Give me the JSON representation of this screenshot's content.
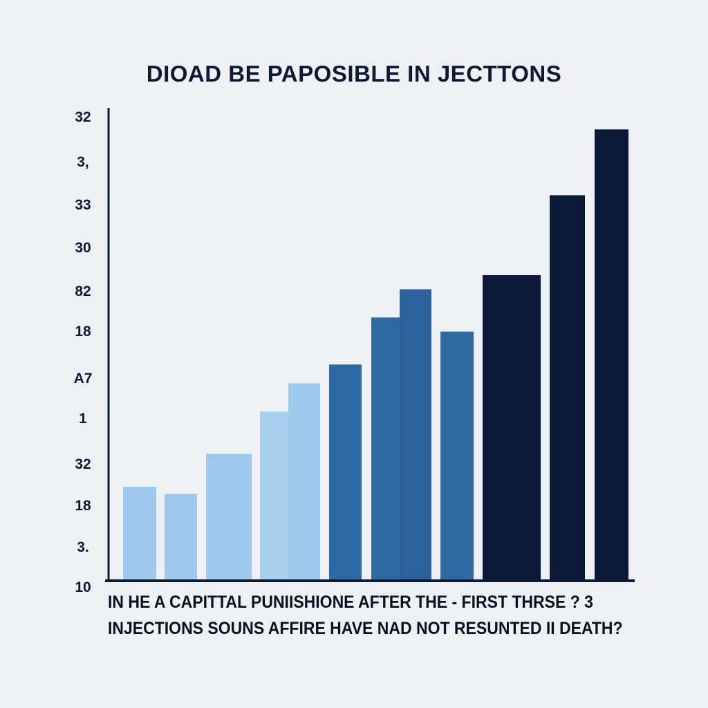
{
  "chart_data": {
    "type": "bar",
    "title": "DIOAD BE PAPOSIBLE IN JECTTONS",
    "xlabel_lines": [
      "IN HE A CAPITTAL PUNIISHIONE AFTER  THE - FIRST THRSE ? 3",
      "INJECTIONS SOUNS AFFIRE HAVE NAD NOT RESUNTED II DEATH?"
    ],
    "ylabel": "",
    "y_tick_labels": [
      "32",
      "3,",
      "33",
      "30",
      "82",
      "18",
      "A7",
      "1",
      "32",
      "18",
      "3.",
      "10"
    ],
    "ylim": [
      0,
      100
    ],
    "values": [
      20,
      18.5,
      27,
      36,
      42,
      46,
      56,
      62,
      53,
      65,
      82,
      96
    ],
    "colors": [
      "#9ec9ec",
      "#9ec9ec",
      "#9ec9ec",
      "#a8cfee",
      "#9ec9ec",
      "#2f69a3",
      "#2f69a3",
      "#2c619b",
      "#3169a2",
      "#0b1936",
      "#0b1936",
      "#0b1936"
    ],
    "grid": false,
    "legend": "none"
  }
}
